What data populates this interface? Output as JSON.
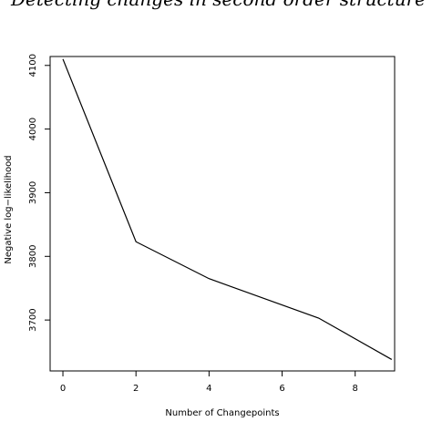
{
  "chart_data": {
    "type": "line",
    "title": "Detecting changes in second order structure",
    "x_label": "Number of Changepoints",
    "y_label": "Negative log−likelihood",
    "x": [
      0,
      2,
      4,
      7,
      9
    ],
    "values": [
      4110,
      3823,
      3765,
      3703,
      3638
    ],
    "color": "#000000",
    "xlim": [
      -0.35,
      9.08
    ],
    "ylim": [
      3620,
      4114
    ],
    "xticks": [
      0,
      2,
      4,
      6,
      8
    ],
    "yticks": [
      3700,
      3800,
      3900,
      4000,
      4100
    ]
  }
}
